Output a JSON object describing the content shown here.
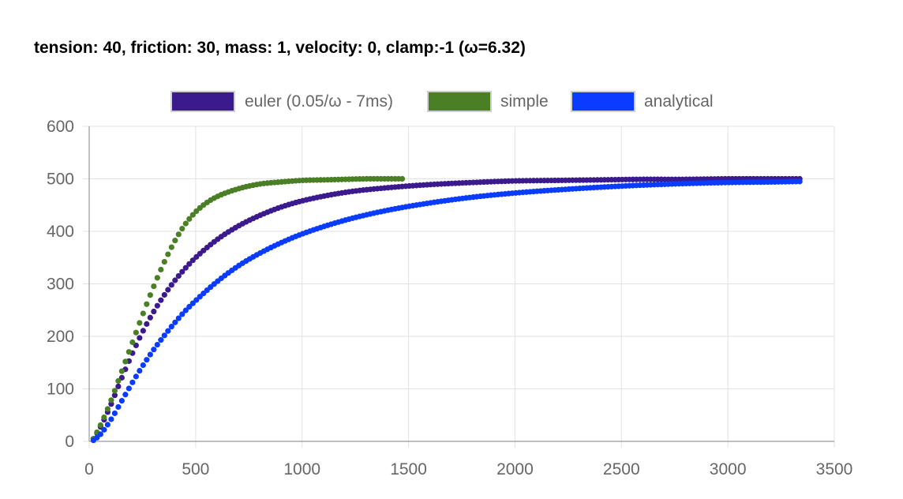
{
  "title": "tension: 40, friction: 30, mass: 1, velocity: 0, clamp:-1 (ω=6.32)",
  "chart_data": {
    "type": "scatter",
    "title": "tension: 40, friction: 30, mass: 1, velocity: 0, clamp:-1 (ω=6.32)",
    "xlabel": "",
    "ylabel": "",
    "xlim": [
      0,
      3500
    ],
    "ylim": [
      0,
      600
    ],
    "xticks": [
      "0",
      "500",
      "1000",
      "1500",
      "2000",
      "2500",
      "3000",
      "3500"
    ],
    "yticks": [
      "0",
      "100",
      "200",
      "300",
      "400",
      "500",
      "600"
    ],
    "grid": true,
    "legend_position": "top",
    "series": [
      {
        "name": "euler (0.05/ω - 7ms)",
        "color": "#3a1a8c",
        "x": [
          20,
          50,
          100,
          150,
          200,
          250,
          300,
          350,
          400,
          450,
          500,
          600,
          700,
          800,
          900,
          1000,
          1200,
          1400,
          1600,
          1800,
          2000,
          2200,
          2400,
          2600,
          2800,
          3000,
          3200,
          3340
        ],
        "y": [
          5,
          25,
          68,
          118,
          165,
          208,
          245,
          277,
          305,
          329,
          350,
          384,
          410,
          430,
          446,
          458,
          474,
          483,
          489,
          493,
          496,
          497,
          498,
          499,
          499,
          500,
          500,
          500
        ]
      },
      {
        "name": "simple",
        "color": "#4a7f25",
        "x": [
          20,
          50,
          100,
          150,
          200,
          250,
          300,
          350,
          400,
          450,
          500,
          550,
          600,
          700,
          800,
          900,
          1000,
          1100,
          1200,
          1300,
          1400,
          1475
        ],
        "y": [
          5,
          28,
          75,
          130,
          185,
          240,
          292,
          339,
          380,
          413,
          437,
          454,
          466,
          481,
          490,
          494,
          497,
          498,
          499,
          500,
          500,
          500
        ]
      },
      {
        "name": "analytical",
        "color": "#0a3cff",
        "x": [
          20,
          50,
          100,
          150,
          200,
          250,
          300,
          350,
          400,
          450,
          500,
          600,
          700,
          800,
          900,
          1000,
          1200,
          1400,
          1600,
          1800,
          2000,
          2200,
          2400,
          2600,
          2800,
          3000,
          3200,
          3340
        ],
        "y": [
          2,
          12,
          40,
          75,
          110,
          143,
          173,
          200,
          225,
          248,
          268,
          304,
          334,
          358,
          378,
          395,
          421,
          440,
          454,
          465,
          473,
          479,
          484,
          488,
          491,
          493,
          494,
          495
        ]
      }
    ]
  }
}
